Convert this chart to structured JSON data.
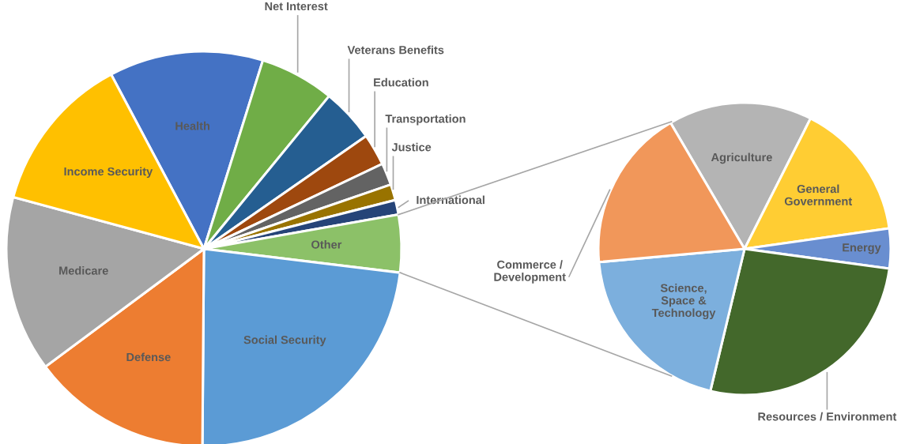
{
  "chart_data": [
    {
      "type": "pie",
      "categories": [
        "Health",
        "Net Interest",
        "Veterans Benefits",
        "Education",
        "Transportation",
        "Justice",
        "International",
        "Other",
        "Social Security",
        "Defense",
        "Medicare",
        "Income Security"
      ],
      "values": [
        12.6,
        6.1,
        4.4,
        2.6,
        1.8,
        1.3,
        1.2,
        4.7,
        23.2,
        14.7,
        14.4,
        13.0
      ],
      "colors": [
        "#4472c4",
        "#70ad47",
        "#255e91",
        "#9e480e",
        "#636363",
        "#997300",
        "#264478",
        "#8cc168",
        "#5b9bd5",
        "#ed7d31",
        "#a5a5a5",
        "#ffc000"
      ]
    },
    {
      "type": "pie",
      "categories": [
        "Agriculture",
        "General Government",
        "Energy",
        "Resources / Environment",
        "Science, Space & Technology",
        "Commerce / Development"
      ],
      "values": [
        15.9,
        15.3,
        4.4,
        26.6,
        19.8,
        18.0
      ],
      "colors": [
        "#b4b4b4",
        "#ffcd33",
        "#698ed0",
        "#43682b",
        "#7cafdd",
        "#f1975a"
      ]
    }
  ]
}
